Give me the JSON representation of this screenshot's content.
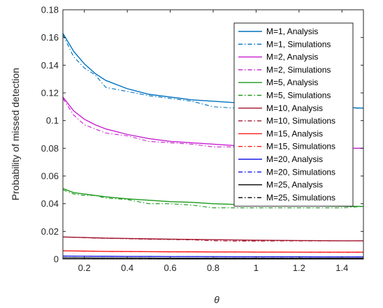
{
  "chart_data": {
    "type": "line",
    "title": "",
    "xlabel": "θ",
    "ylabel": "Probability of missed detection",
    "xlim": [
      0.1,
      1.5
    ],
    "ylim": [
      0,
      0.18
    ],
    "xticks": [
      0.2,
      0.4,
      0.6,
      0.8,
      1,
      1.2,
      1.4
    ],
    "xtick_labels": [
      "0.2",
      "0.4",
      "0.6",
      "0.8",
      "1",
      "1.2",
      "1.4"
    ],
    "yticks": [
      0,
      0.02,
      0.04,
      0.06,
      0.08,
      0.1,
      0.12,
      0.14,
      0.16,
      0.18
    ],
    "ytick_labels": [
      "0",
      "0.02",
      "0.04",
      "0.06",
      "0.08",
      "0.1",
      "0.12",
      "0.14",
      "0.16",
      "0.18"
    ],
    "grid": false,
    "legend_position": "top-right",
    "x": [
      0.1,
      0.15,
      0.2,
      0.25,
      0.3,
      0.4,
      0.5,
      0.6,
      0.7,
      0.8,
      0.9,
      1.0,
      1.1,
      1.2,
      1.3,
      1.4,
      1.5
    ],
    "series": [
      {
        "name": "M=1, Analysis",
        "color": "#0072BD",
        "style": "solid",
        "values": [
          0.163,
          0.15,
          0.141,
          0.134,
          0.129,
          0.123,
          0.119,
          0.117,
          0.115,
          0.114,
          0.113,
          0.112,
          0.111,
          0.1105,
          0.11,
          0.1095,
          0.109
        ]
      },
      {
        "name": "M=1, Simulations",
        "color": "#0072BD",
        "style": "dashdot",
        "values": [
          0.162,
          0.146,
          0.138,
          0.133,
          0.124,
          0.121,
          0.118,
          0.116,
          0.114,
          0.11,
          0.109,
          0.109,
          0.11,
          0.11,
          0.11,
          0.109,
          0.109
        ]
      },
      {
        "name": "M=2, Analysis",
        "color": "#C71FD1",
        "style": "solid",
        "values": [
          0.117,
          0.107,
          0.101,
          0.097,
          0.094,
          0.09,
          0.087,
          0.085,
          0.084,
          0.083,
          0.082,
          0.0815,
          0.081,
          0.0805,
          0.08,
          0.08,
          0.08
        ]
      },
      {
        "name": "M=2, Simulations",
        "color": "#C71FD1",
        "style": "dashdot",
        "values": [
          0.116,
          0.104,
          0.097,
          0.094,
          0.091,
          0.089,
          0.085,
          0.084,
          0.083,
          0.081,
          0.081,
          0.08,
          0.08,
          0.079,
          0.079,
          0.08,
          0.08
        ]
      },
      {
        "name": "M=5, Analysis",
        "color": "#1A9A1A",
        "style": "solid",
        "values": [
          0.051,
          0.048,
          0.047,
          0.046,
          0.045,
          0.0435,
          0.0425,
          0.0415,
          0.041,
          0.04,
          0.0395,
          0.039,
          0.0388,
          0.0386,
          0.0384,
          0.0382,
          0.038
        ]
      },
      {
        "name": "M=5, Simulations",
        "color": "#1A9A1A",
        "style": "dashdot",
        "values": [
          0.05,
          0.047,
          0.046,
          0.046,
          0.044,
          0.043,
          0.04,
          0.04,
          0.039,
          0.037,
          0.037,
          0.037,
          0.037,
          0.037,
          0.037,
          0.037,
          0.038
        ]
      },
      {
        "name": "M=10, Analysis",
        "color": "#A2142F",
        "style": "solid",
        "values": [
          0.016,
          0.0158,
          0.0156,
          0.0154,
          0.0152,
          0.0149,
          0.0146,
          0.0144,
          0.0142,
          0.014,
          0.0138,
          0.0136,
          0.0135,
          0.0134,
          0.0133,
          0.0132,
          0.0132
        ]
      },
      {
        "name": "M=10, Simulations",
        "color": "#A2142F",
        "style": "dashdot",
        "values": [
          0.016,
          0.0157,
          0.0155,
          0.0152,
          0.015,
          0.0147,
          0.0143,
          0.0141,
          0.0139,
          0.0132,
          0.013,
          0.013,
          0.0131,
          0.0131,
          0.0131,
          0.0131,
          0.0132
        ]
      },
      {
        "name": "M=15, Analysis",
        "color": "#FF1A1A",
        "style": "solid",
        "values": [
          0.006,
          0.0059,
          0.0058,
          0.0057,
          0.0056,
          0.0055,
          0.0054,
          0.0053,
          0.0053,
          0.0052,
          0.0052,
          0.0051,
          0.0051,
          0.005,
          0.005,
          0.005,
          0.005
        ]
      },
      {
        "name": "M=15, Simulations",
        "color": "#FF1A1A",
        "style": "dashdot",
        "values": [
          0.006,
          0.0058,
          0.0057,
          0.0056,
          0.0055,
          0.0054,
          0.0053,
          0.0052,
          0.0052,
          0.0051,
          0.0051,
          0.005,
          0.005,
          0.005,
          0.0049,
          0.0049,
          0.0049
        ]
      },
      {
        "name": "M=20, Analysis",
        "color": "#1A1AE6",
        "style": "solid",
        "values": [
          0.0022,
          0.0021,
          0.0021,
          0.002,
          0.002,
          0.0019,
          0.0019,
          0.0018,
          0.0018,
          0.0018,
          0.0017,
          0.0017,
          0.0017,
          0.0017,
          0.0016,
          0.0016,
          0.0016
        ]
      },
      {
        "name": "M=20, Simulations",
        "color": "#1A1AE6",
        "style": "dashdot",
        "values": [
          0.0021,
          0.0021,
          0.002,
          0.002,
          0.0019,
          0.0019,
          0.0018,
          0.0018,
          0.0018,
          0.0017,
          0.0017,
          0.0017,
          0.0016,
          0.0016,
          0.0016,
          0.0016,
          0.0016
        ]
      },
      {
        "name": "M=25, Analysis",
        "color": "#000000",
        "style": "solid",
        "values": [
          0.0008,
          0.0008,
          0.0008,
          0.0007,
          0.0007,
          0.0007,
          0.0007,
          0.0006,
          0.0006,
          0.0006,
          0.0006,
          0.0006,
          0.0006,
          0.0006,
          0.0006,
          0.0006,
          0.0006
        ]
      },
      {
        "name": "M=25, Simulations",
        "color": "#000000",
        "style": "dashdot",
        "values": [
          0.0008,
          0.0008,
          0.0007,
          0.0007,
          0.0007,
          0.0007,
          0.0006,
          0.0006,
          0.0006,
          0.0006,
          0.0006,
          0.0006,
          0.0006,
          0.0006,
          0.0005,
          0.0005,
          0.0005
        ]
      }
    ]
  }
}
